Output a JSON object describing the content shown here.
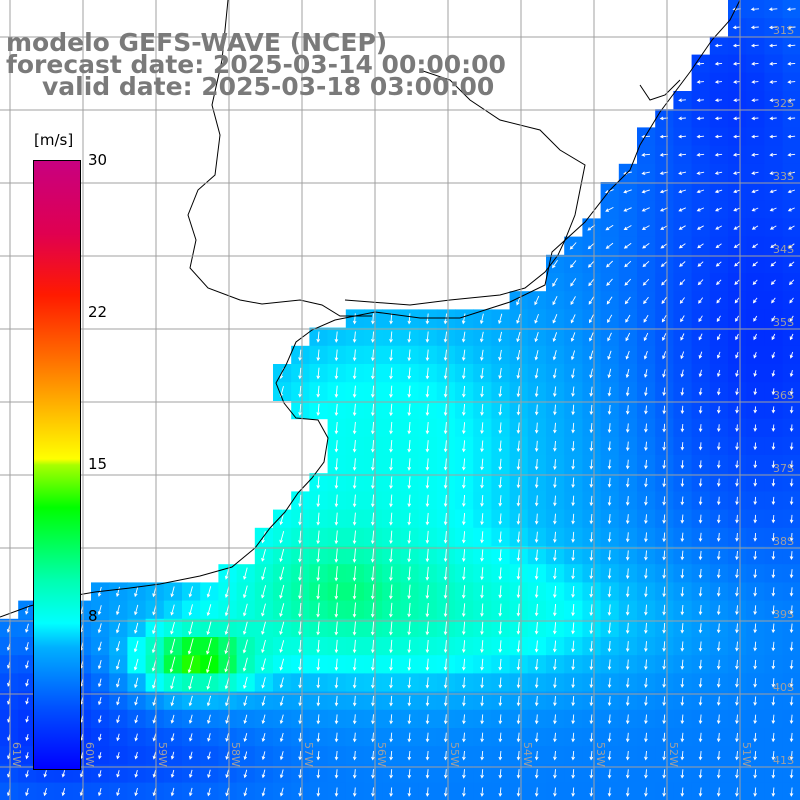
{
  "title": {
    "line1": "modelo GEFS-WAVE (NCEP)",
    "line2": "forecast date: 2025-03-14 00:00:00",
    "line3": "valid date: 2025-03-18 03:00:00"
  },
  "colorbar": {
    "unit": "[m/s]",
    "ticks": [
      "30",
      "22",
      "15",
      "8"
    ],
    "min": 0,
    "max": 30,
    "colors": {
      "low": "#0000ff",
      "mid": "#00ffff",
      "middle_high": "#00ff00",
      "high": "#ffff00",
      "top": "#ff0000",
      "max": "#c80080"
    }
  },
  "map": {
    "lat_labels": [
      "31S",
      "32S",
      "33S",
      "34S",
      "35S",
      "36S",
      "37S",
      "38S",
      "39S",
      "40S",
      "41S"
    ],
    "lon_labels": [
      "61W",
      "60W",
      "59W",
      "58W",
      "57W",
      "56W",
      "55W",
      "54W",
      "53W",
      "52W",
      "51W"
    ],
    "land_color": "#ffffff",
    "grid_color": "#a0a0a0",
    "arrow_color": "#ffffff"
  }
}
